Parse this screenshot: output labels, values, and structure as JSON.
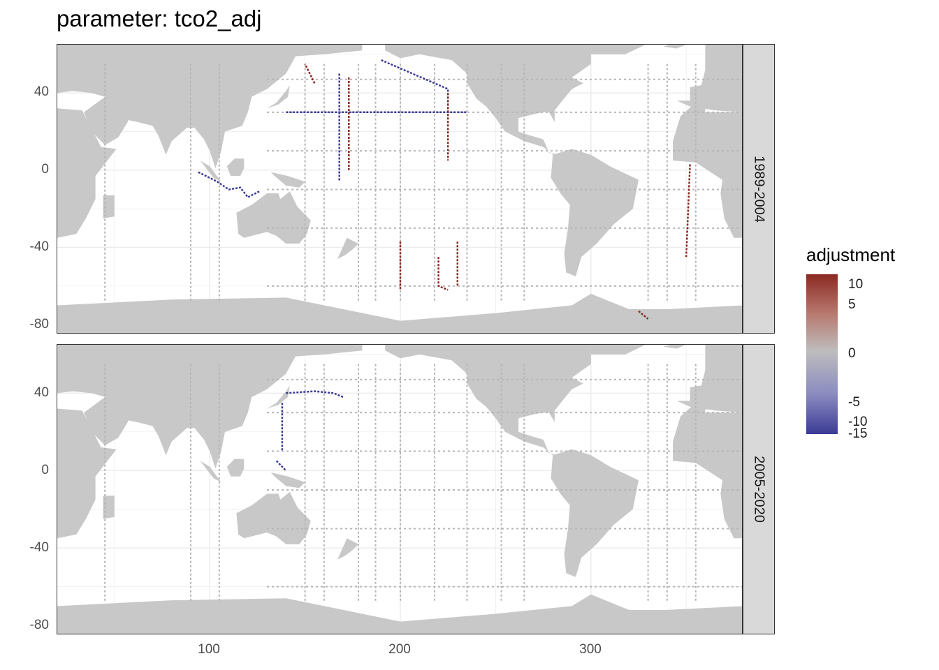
{
  "title": "parameter: tco2_adj",
  "facets": [
    "1989-2004",
    "2005-2020"
  ],
  "legend": {
    "title": "adjustment",
    "ticks": [
      "10",
      "5",
      "0",
      "-5",
      "-10",
      "-15"
    ],
    "colors": {
      "high": "#8b2a22",
      "mid": "#bdbdbd",
      "low": "#3b3b96"
    }
  },
  "chart_data": {
    "type": "heatmap",
    "title": "parameter: tco2_adj",
    "xlabel": "",
    "ylabel": "",
    "x_ticks": [
      "100",
      "200",
      "300"
    ],
    "y_ticks": [
      "40",
      "0",
      "-40",
      "-80"
    ],
    "xlim": [
      20,
      380
    ],
    "ylim": [
      -85,
      65
    ],
    "legend_position": "right",
    "grid": true,
    "land_color": "#c8c8c8",
    "track_color": "#b5b5b5",
    "facets": [
      {
        "name": "1989-2004",
        "tracks": [
          {
            "value": -8,
            "points": [
              [
                140,
                30
              ],
              [
                165,
                30
              ],
              [
                180,
                30
              ],
              [
                200,
                30
              ],
              [
                220,
                30
              ],
              [
                235,
                30
              ]
            ]
          },
          {
            "value": -8,
            "points": [
              [
                190,
                57
              ],
              [
                225,
                42
              ],
              [
                225,
                30
              ]
            ]
          },
          {
            "value": -14,
            "points": [
              [
                94,
                -1
              ],
              [
                104,
                -6
              ],
              [
                110,
                -10
              ],
              [
                116,
                -9
              ],
              [
                120,
                -14
              ],
              [
                126,
                -11
              ]
            ]
          },
          {
            "value": 10,
            "points": [
              [
                173,
                48
              ],
              [
                173,
                0
              ]
            ]
          },
          {
            "value": -7,
            "points": [
              [
                168,
                50
              ],
              [
                168,
                -6
              ]
            ]
          },
          {
            "value": 8,
            "points": [
              [
                225,
                40
              ],
              [
                225,
                5
              ]
            ]
          },
          {
            "value": 8,
            "points": [
              [
                220,
                -45
              ],
              [
                220,
                -60
              ],
              [
                225,
                -62
              ]
            ]
          },
          {
            "value": 8,
            "points": [
              [
                230,
                -37
              ],
              [
                230,
                -60
              ]
            ]
          },
          {
            "value": 8,
            "points": [
              [
                200,
                -37
              ],
              [
                200,
                -62
              ]
            ]
          },
          {
            "value": 7,
            "points": [
              [
                352,
                3
              ],
              [
                350,
                -45
              ]
            ]
          },
          {
            "value": 9,
            "points": [
              [
                155,
                45
              ],
              [
                150,
                55
              ]
            ]
          },
          {
            "value": 9,
            "points": [
              [
                325,
                -73
              ],
              [
                330,
                -77
              ]
            ]
          }
        ]
      },
      {
        "name": "2005-2020",
        "tracks": [
          {
            "value": -9,
            "points": [
              [
                140,
                40
              ],
              [
                155,
                41
              ],
              [
                165,
                40
              ],
              [
                170,
                38
              ]
            ]
          },
          {
            "value": -10,
            "points": [
              [
                135,
                5
              ],
              [
                140,
                0
              ]
            ]
          },
          {
            "value": -6,
            "points": [
              [
                138,
                35
              ],
              [
                138,
                10
              ]
            ]
          }
        ]
      }
    ]
  }
}
